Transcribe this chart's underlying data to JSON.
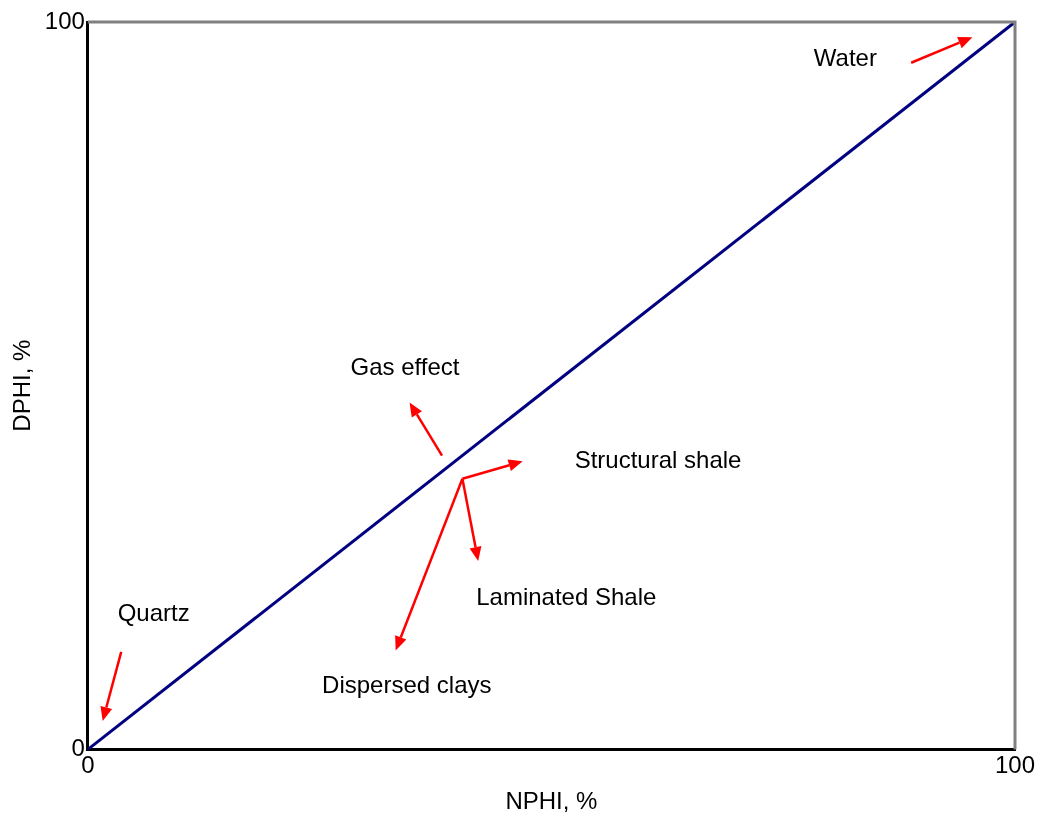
{
  "chart_data": {
    "type": "line",
    "xlabel": "NPHI, %",
    "ylabel": "DPHI, %",
    "x": [
      0,
      100
    ],
    "series": [
      {
        "color": "#000080",
        "values": [
          0,
          100
        ]
      }
    ],
    "xlim": [
      0,
      100
    ],
    "xticks": [
      0,
      100
    ],
    "ylim": [
      0,
      100
    ],
    "yticks": [
      0,
      100
    ],
    "legend": false,
    "marker": "none",
    "line_style": "solid",
    "annotations": [
      "Water",
      "Gas effect",
      "Structural shale",
      "Laminated Shale",
      "Dispersed clays",
      "Quartz"
    ]
  }
}
